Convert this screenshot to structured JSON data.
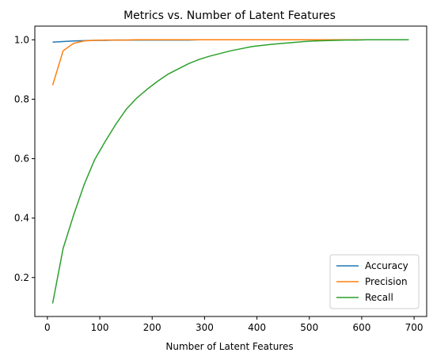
{
  "chart_data": {
    "type": "line",
    "title": "Metrics vs. Number of Latent Features",
    "xlabel": "Number of Latent Features",
    "ylabel": "",
    "xlim": [
      -24,
      724
    ],
    "ylim": [
      0.069,
      1.046
    ],
    "x_ticks": [
      "0",
      "100",
      "200",
      "300",
      "400",
      "500",
      "600",
      "700"
    ],
    "y_ticks": [
      "0.2",
      "0.4",
      "0.6",
      "0.8",
      "1.0"
    ],
    "grid": false,
    "legend_position": "lower-right",
    "x": [
      10,
      30,
      50,
      70,
      90,
      110,
      130,
      150,
      170,
      190,
      210,
      230,
      250,
      270,
      290,
      310,
      330,
      350,
      370,
      390,
      410,
      430,
      450,
      470,
      490,
      510,
      530,
      550,
      570,
      590,
      610,
      630,
      650,
      670,
      690
    ],
    "series": [
      {
        "name": "Accuracy",
        "color": "#1f77b4",
        "values": [
          0.992,
          0.994,
          0.996,
          0.997,
          0.998,
          0.998,
          0.999,
          0.999,
          0.999,
          0.999,
          0.999,
          0.999,
          0.999,
          0.999,
          1.0,
          1.0,
          1.0,
          1.0,
          1.0,
          1.0,
          1.0,
          1.0,
          1.0,
          1.0,
          1.0,
          1.0,
          1.0,
          1.0,
          1.0,
          1.0,
          1.0,
          1.0,
          1.0,
          1.0,
          1.0
        ]
      },
      {
        "name": "Precision",
        "color": "#ff7f0e",
        "values": [
          0.847,
          0.963,
          0.988,
          0.996,
          0.998,
          0.999,
          0.999,
          0.999,
          1.0,
          1.0,
          1.0,
          1.0,
          1.0,
          1.0,
          1.0,
          1.0,
          1.0,
          1.0,
          1.0,
          1.0,
          1.0,
          1.0,
          1.0,
          1.0,
          1.0,
          1.0,
          1.0,
          1.0,
          1.0,
          1.0,
          1.0,
          1.0,
          1.0,
          1.0,
          1.0
        ]
      },
      {
        "name": "Recall",
        "color": "#2ca02c",
        "values": [
          0.113,
          0.298,
          0.41,
          0.512,
          0.596,
          0.657,
          0.714,
          0.765,
          0.803,
          0.833,
          0.86,
          0.884,
          0.902,
          0.92,
          0.934,
          0.945,
          0.954,
          0.963,
          0.97,
          0.977,
          0.981,
          0.985,
          0.988,
          0.991,
          0.994,
          0.996,
          0.997,
          0.998,
          0.999,
          0.999,
          1.0,
          1.0,
          1.0,
          1.0,
          1.0
        ]
      }
    ]
  }
}
